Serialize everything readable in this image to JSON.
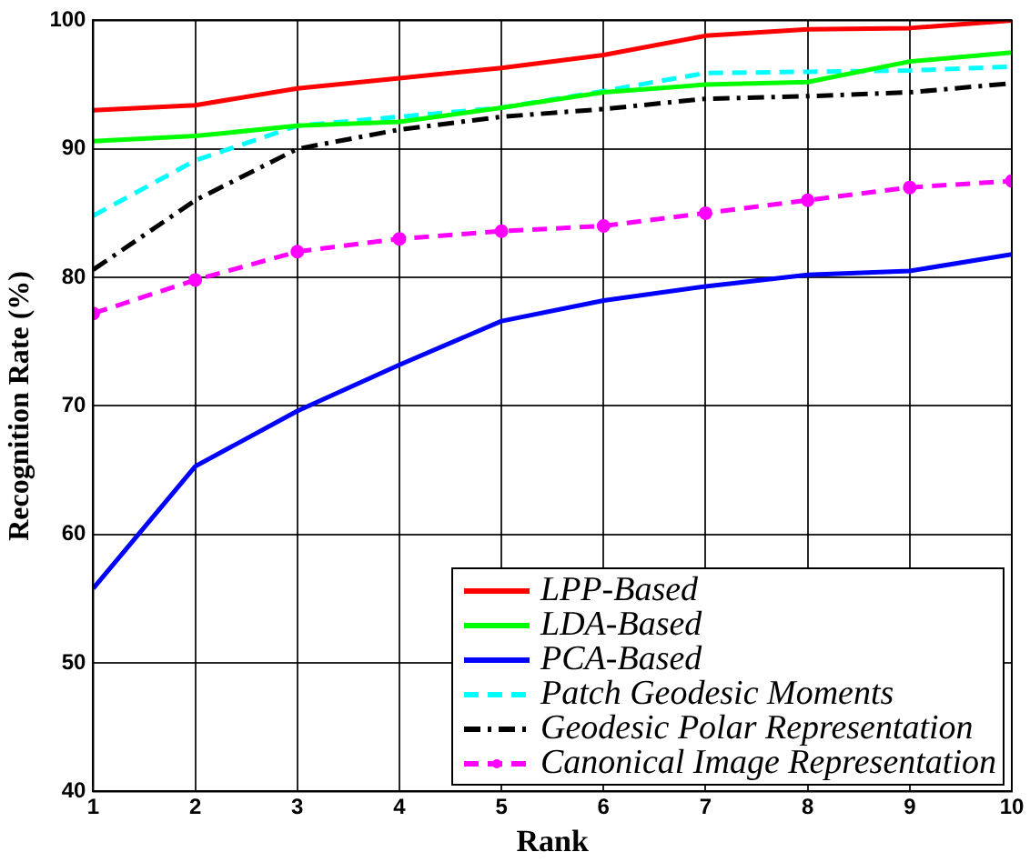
{
  "chart_data": {
    "type": "line",
    "xlabel": "Rank",
    "ylabel": "Recognition Rate (%)",
    "x": [
      1,
      2,
      3,
      4,
      5,
      6,
      7,
      8,
      9,
      10
    ],
    "xlim": [
      1,
      10
    ],
    "xticks": [
      1,
      2,
      3,
      4,
      5,
      6,
      7,
      8,
      9,
      10
    ],
    "ylim": [
      40,
      100
    ],
    "yticks": [
      40,
      50,
      60,
      70,
      80,
      90,
      100
    ],
    "grid": true,
    "legend": "bottom right",
    "series": [
      {
        "name": "LPP-Based",
        "color": "#ff0000",
        "line_style": "solid",
        "values": [
          93,
          93.4,
          94.7,
          95.5,
          96.3,
          97.3,
          98.8,
          99.3,
          99.4,
          100
        ]
      },
      {
        "name": "LDA-Based",
        "color": "#00ff00",
        "line_style": "solid",
        "values": [
          90.6,
          91,
          91.8,
          92.1,
          93.2,
          94.4,
          95,
          95.2,
          96.8,
          97.5
        ]
      },
      {
        "name": "PCA-Based",
        "color": "#0000ff",
        "line_style": "solid",
        "values": [
          55.8,
          65.3,
          69.6,
          73.2,
          76.6,
          78.2,
          79.3,
          80.2,
          80.5,
          81.8
        ]
      },
      {
        "name": "Patch Geodesic Moments",
        "color": "#00ffff",
        "line_style": "dashed",
        "values": [
          84.8,
          89.1,
          91.8,
          92.5,
          93.2,
          94.5,
          95.9,
          96,
          96.1,
          96.4
        ]
      },
      {
        "name": "Geodesic Polar Representation",
        "color": "#000000",
        "line_style": "dashdot",
        "values": [
          80.6,
          86,
          90,
          91.5,
          92.5,
          93.1,
          93.9,
          94.1,
          94.4,
          95.1
        ]
      },
      {
        "name": "Canonical Image Representation",
        "color": "#ff00ff",
        "line_style": "dashed",
        "marker": "circle",
        "values": [
          77.2,
          79.8,
          82,
          83,
          83.6,
          84,
          85,
          86,
          87,
          87.5
        ]
      }
    ]
  }
}
